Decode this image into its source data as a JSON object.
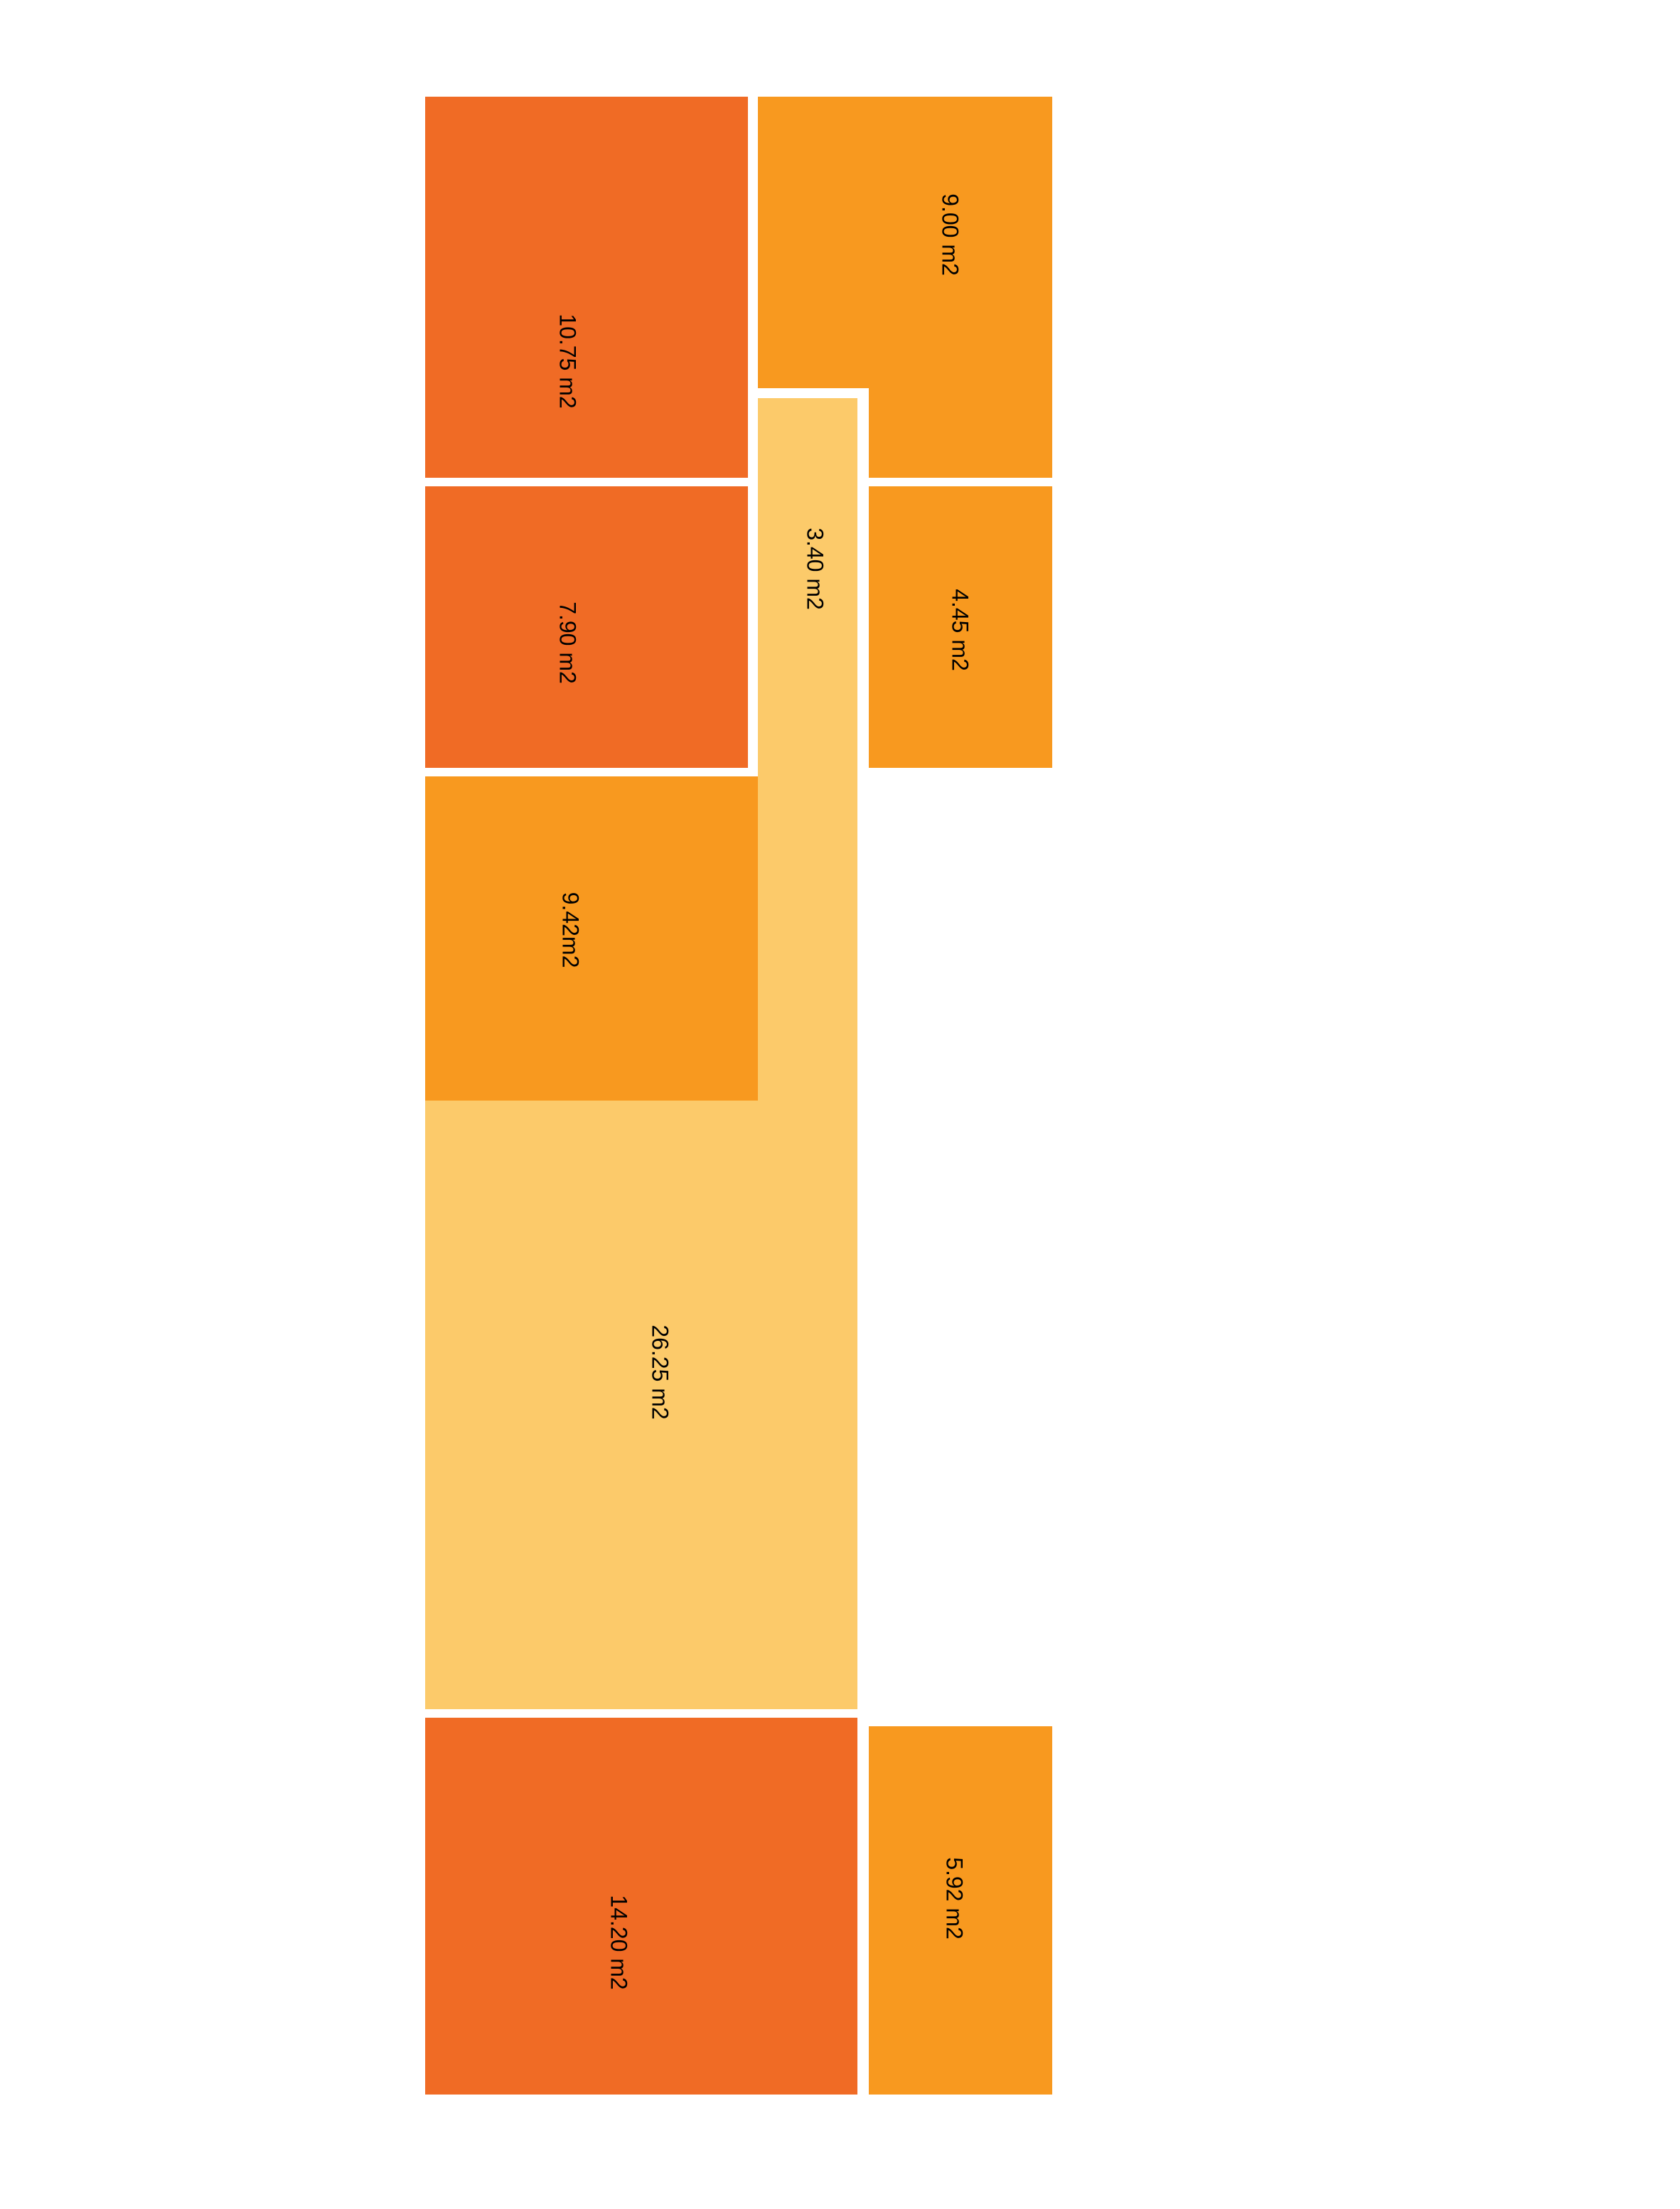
{
  "colors": {
    "dark_orange": "#F06B25",
    "orange": "#F8991F",
    "light_yellow": "#FCCA6A",
    "background": "#FFFFFF"
  },
  "rooms": [
    {
      "id": "room-10-75",
      "area_label": "10.75 m2",
      "tone": "dark_orange"
    },
    {
      "id": "room-9-00",
      "area_label": "9.00 m2",
      "tone": "orange"
    },
    {
      "id": "room-3-40",
      "area_label": "3.40 m2",
      "tone": "light_yellow"
    },
    {
      "id": "room-7-90",
      "area_label": "7.90 m2",
      "tone": "dark_orange"
    },
    {
      "id": "room-4-45",
      "area_label": "4.45 m2",
      "tone": "orange"
    },
    {
      "id": "room-9-42",
      "area_label": "9.42m2",
      "tone": "orange"
    },
    {
      "id": "room-26-25",
      "area_label": "26.25 m2",
      "tone": "light_yellow"
    },
    {
      "id": "room-14-20",
      "area_label": "14.20 m2",
      "tone": "dark_orange"
    },
    {
      "id": "room-5-92",
      "area_label": "5.92 m2",
      "tone": "orange"
    }
  ]
}
